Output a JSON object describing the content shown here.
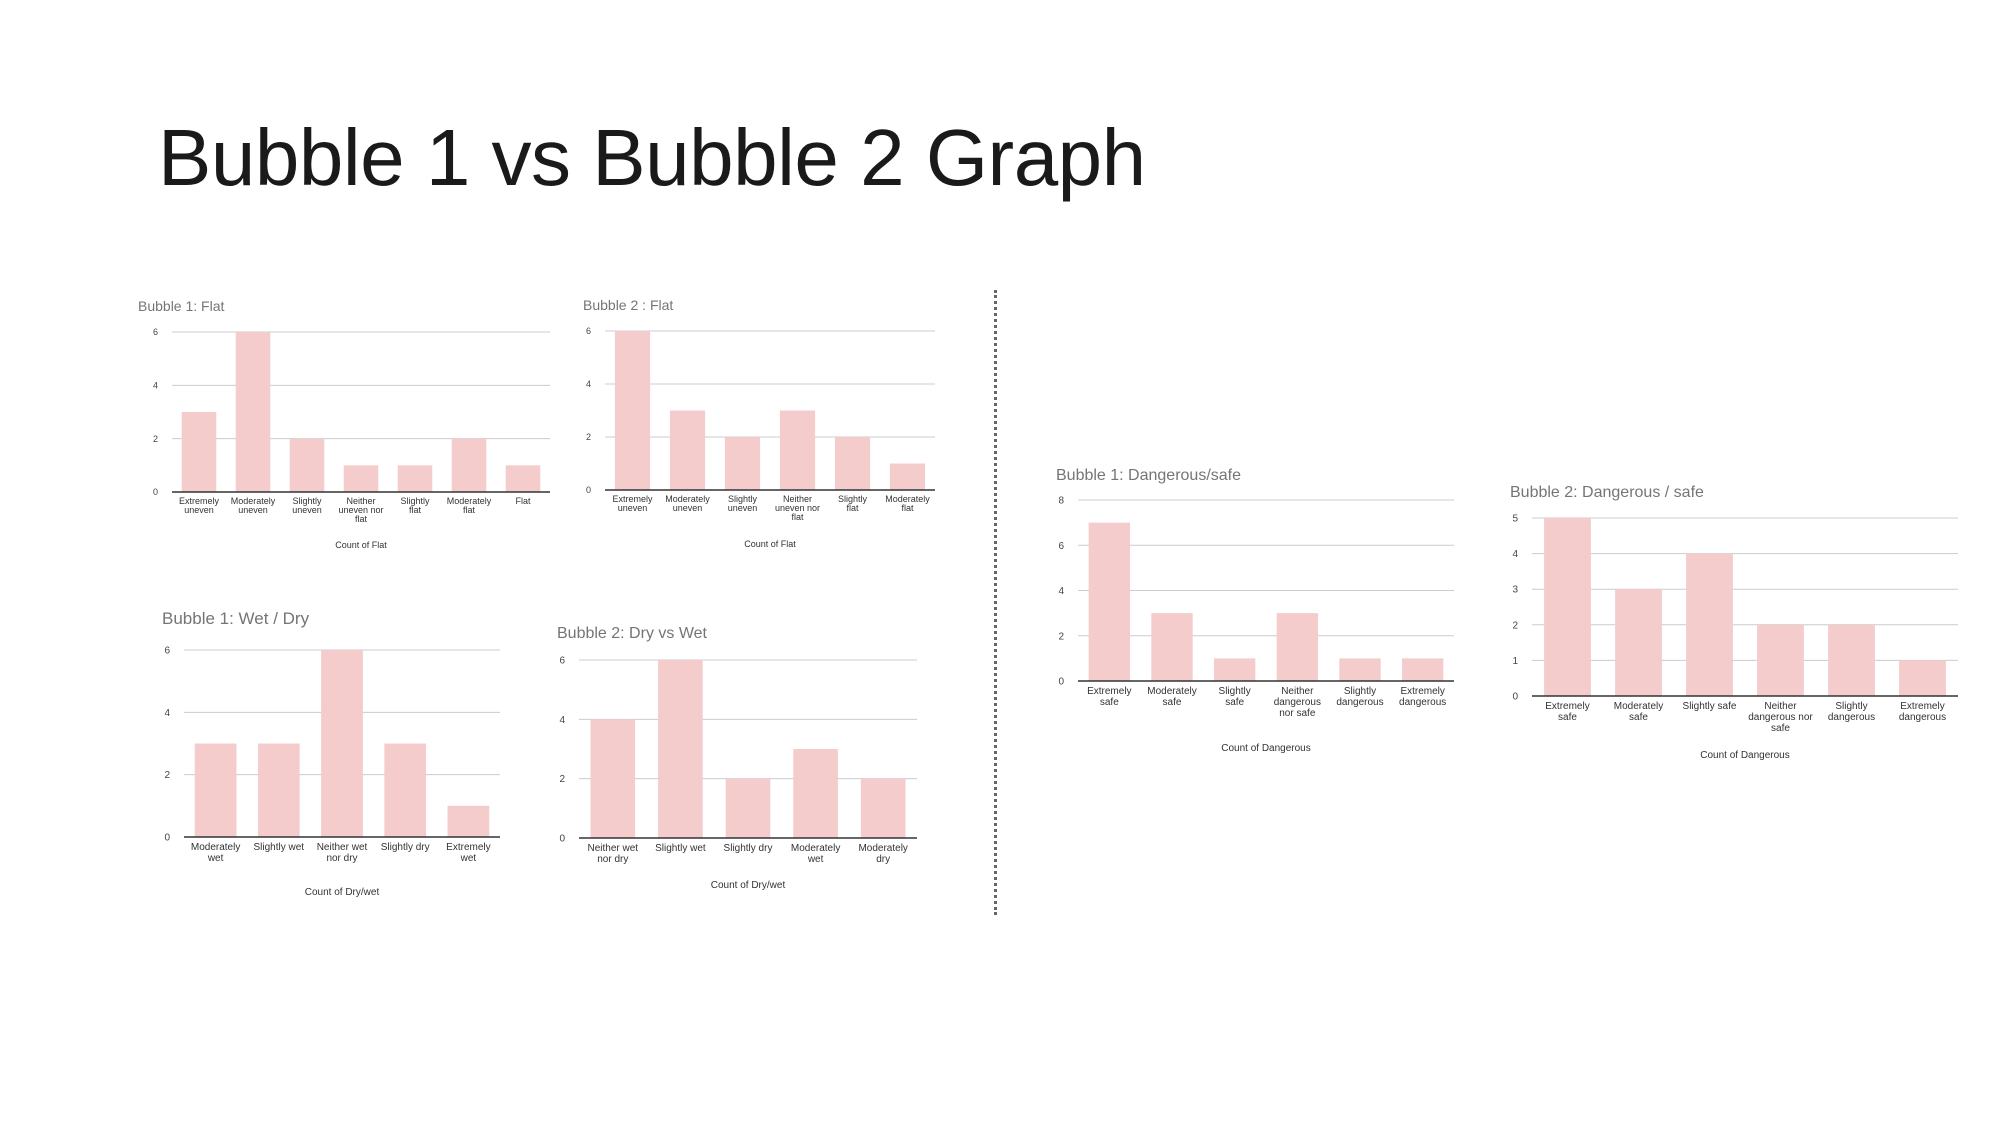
{
  "slide": {
    "title": "Bubble 1 vs Bubble 2 Graph"
  },
  "theme": {
    "bar_color": "#f4cccc",
    "grid_color": "#cccccc",
    "axis_color": "#333333"
  },
  "chart_data": [
    {
      "id": "b1-flat",
      "type": "bar",
      "title": "Bubble 1: Flat",
      "xlabel": "Count of Flat",
      "ylabel": "",
      "categories": [
        "Extremely uneven",
        "Moderately uneven",
        "Slightly uneven",
        "Neither uneven nor flat",
        "Slightly flat",
        "Moderately flat",
        "Flat"
      ],
      "values": [
        3,
        6,
        2,
        1,
        1,
        2,
        1
      ],
      "ylim": [
        0,
        6
      ],
      "yticks": [
        0,
        2,
        4,
        6
      ],
      "grid": true,
      "legend": "none"
    },
    {
      "id": "b2-flat",
      "type": "bar",
      "title": "Bubble 2 : Flat",
      "xlabel": "Count of Flat",
      "ylabel": "",
      "categories": [
        "Extremely uneven",
        "Moderately uneven",
        "Slightly uneven",
        "Neither uneven nor flat",
        "Slightly flat",
        "Moderately flat"
      ],
      "values": [
        6,
        3,
        2,
        3,
        2,
        1
      ],
      "ylim": [
        0,
        6
      ],
      "yticks": [
        0,
        2,
        4,
        6
      ],
      "grid": true,
      "legend": "none"
    },
    {
      "id": "b1-wetdry",
      "type": "bar",
      "title": "Bubble 1: Wet / Dry",
      "xlabel": "Count of Dry/wet",
      "ylabel": "",
      "categories": [
        "Moderately wet",
        "Slightly wet",
        "Neither wet nor dry",
        "Slightly dry",
        "Extremely wet"
      ],
      "values": [
        3,
        3,
        6,
        3,
        1
      ],
      "ylim": [
        0,
        6
      ],
      "yticks": [
        0,
        2,
        4,
        6
      ],
      "grid": true,
      "legend": "none"
    },
    {
      "id": "b2-drywet",
      "type": "bar",
      "title": "Bubble 2: Dry vs Wet",
      "xlabel": "Count of Dry/wet",
      "ylabel": "",
      "categories": [
        "Neither wet nor dry",
        "Slightly wet",
        "Slightly dry",
        "Moderately wet",
        "Moderately dry"
      ],
      "values": [
        4,
        6,
        2,
        3,
        2
      ],
      "ylim": [
        0,
        6
      ],
      "yticks": [
        0,
        2,
        4,
        6
      ],
      "grid": true,
      "legend": "none"
    },
    {
      "id": "b1-danger",
      "type": "bar",
      "title": "Bubble 1: Dangerous/safe",
      "xlabel": "Count of Dangerous",
      "ylabel": "",
      "categories": [
        "Extremely safe",
        "Moderately safe",
        "Slightly safe",
        "Neither dangerous nor safe",
        "Slightly dangerous",
        "Extremely dangerous"
      ],
      "values": [
        7,
        3,
        1,
        3,
        1,
        1
      ],
      "ylim": [
        0,
        8
      ],
      "yticks": [
        0,
        2,
        4,
        6,
        8
      ],
      "grid": true,
      "legend": "none"
    },
    {
      "id": "b2-danger",
      "type": "bar",
      "title": "Bubble 2: Dangerous / safe",
      "xlabel": "Count of Dangerous",
      "ylabel": "",
      "categories": [
        "Extremely safe",
        "Moderately safe",
        "Slightly safe",
        "Neither dangerous nor safe",
        "Slightly dangerous",
        "Extremely dangerous"
      ],
      "values": [
        5,
        3,
        4,
        2,
        2,
        1
      ],
      "ylim": [
        0,
        5
      ],
      "yticks": [
        0,
        1,
        2,
        3,
        4,
        5
      ],
      "grid": true,
      "legend": "none"
    }
  ]
}
